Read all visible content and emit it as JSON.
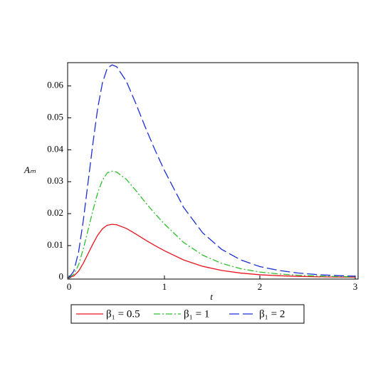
{
  "chart_data": {
    "type": "line",
    "x_label": "t",
    "y_label": "Aₘ",
    "x": [
      0,
      0.05,
      0.1,
      0.15,
      0.2,
      0.25,
      0.3,
      0.35,
      0.4,
      0.45,
      0.5,
      0.6,
      0.7,
      0.8,
      0.9,
      1.0,
      1.2,
      1.4,
      1.6,
      1.8,
      2.0,
      2.2,
      2.4,
      2.6,
      2.8,
      3.0
    ],
    "series": [
      {
        "name": "β₁ = 0.5",
        "color": "#e8141e",
        "style": "solid",
        "values": [
          0,
          0.0005,
          0.002,
          0.0045,
          0.0075,
          0.0105,
          0.01325,
          0.01525,
          0.01638,
          0.01665,
          0.0165,
          0.01538,
          0.01363,
          0.01175,
          0.01,
          0.00838,
          0.0055,
          0.0035,
          0.0022,
          0.00138,
          0.00085,
          0.00055,
          0.00035,
          0.00023,
          0.00015,
          0.0001
        ]
      },
      {
        "name": "β₁ = 1",
        "color": "#2fbf2f",
        "style": "dashdot",
        "values": [
          0,
          0.001,
          0.004,
          0.009,
          0.015,
          0.021,
          0.0265,
          0.0305,
          0.03275,
          0.0333,
          0.033,
          0.03075,
          0.02725,
          0.0235,
          0.02,
          0.01675,
          0.011,
          0.007,
          0.0044,
          0.00275,
          0.0017,
          0.0011,
          0.0007,
          0.00045,
          0.0003,
          0.0002
        ]
      },
      {
        "name": "β₁ = 2",
        "color": "#1c2ed6",
        "style": "dash",
        "values": [
          0,
          0.002,
          0.008,
          0.018,
          0.03,
          0.042,
          0.053,
          0.061,
          0.0655,
          0.0666,
          0.066,
          0.0615,
          0.0545,
          0.047,
          0.04,
          0.0335,
          0.022,
          0.014,
          0.0088,
          0.0055,
          0.0034,
          0.0022,
          0.0014,
          0.0009,
          0.0006,
          0.0004
        ]
      }
    ],
    "xlim": [
      -0.015,
      3.03
    ],
    "ylim": [
      -0.0005,
      0.0673
    ],
    "xticks": [
      0,
      1,
      2,
      3
    ],
    "yticks": [
      0,
      0.01,
      0.02,
      0.03,
      0.04,
      0.05,
      0.06
    ],
    "legend": "bottom"
  }
}
